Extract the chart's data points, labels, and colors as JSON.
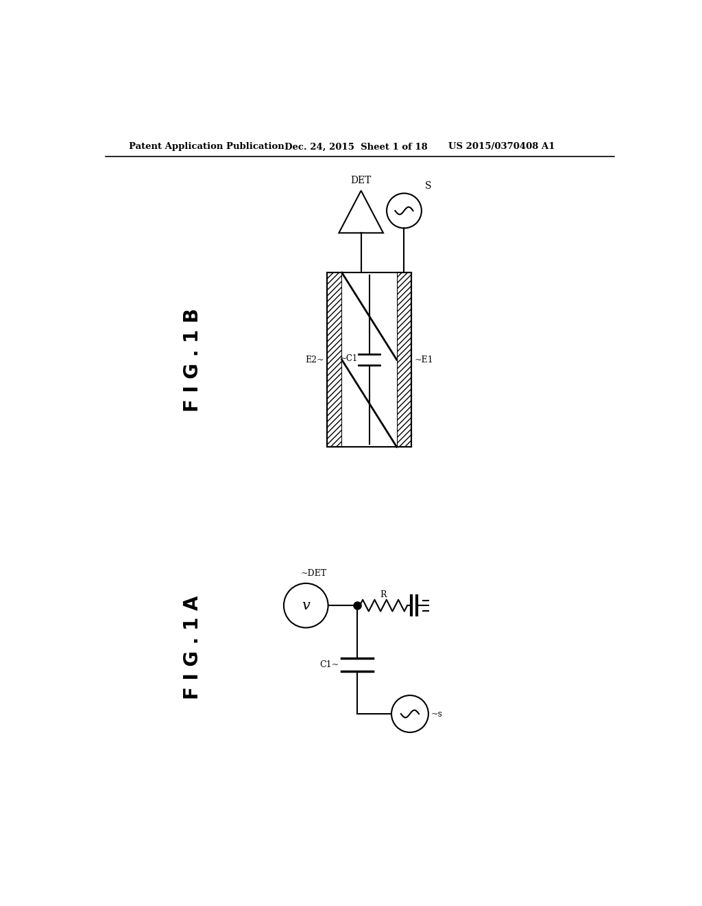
{
  "bg_color": "#ffffff",
  "header_text": "Patent Application Publication",
  "header_date": "Dec. 24, 2015  Sheet 1 of 18",
  "header_patent": "US 2015/0370408 A1",
  "fig1b_label": "F I G . 1 B",
  "fig1a_label": "F I G . 1 A",
  "line_color": "#000000"
}
